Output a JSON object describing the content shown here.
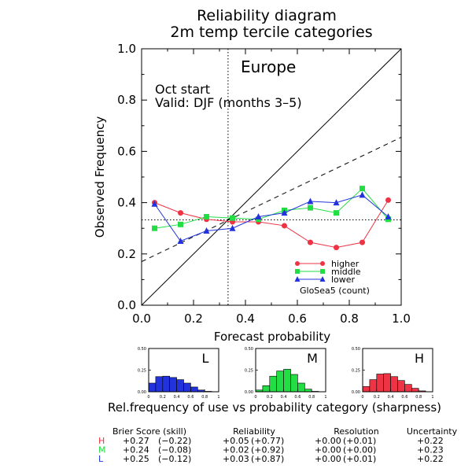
{
  "title_line1": "Reliability diagram",
  "title_line2": "2m temp tercile categories",
  "region": "Europe",
  "start_text": "Oct start",
  "valid_text": "Valid: DJF (months 3–5)",
  "model_text": "GloSea5 (count)",
  "colors": {
    "higher": "#ee3344",
    "middle": "#22dd44",
    "lower": "#2233dd"
  },
  "chart_data": {
    "type": "line",
    "xlabel": "Forecast probability",
    "ylabel": "Observed Frequency",
    "xlim": [
      0.0,
      1.0
    ],
    "ylim": [
      0.0,
      1.0
    ],
    "x_ticks": [
      "0.0",
      "0.2",
      "0.4",
      "0.6",
      "0.8",
      "1.0"
    ],
    "y_ticks": [
      "0.0",
      "0.2",
      "0.4",
      "0.6",
      "0.8",
      "1.0"
    ],
    "climatology": 0.333,
    "diagonal": [
      [
        0,
        0
      ],
      [
        1,
        1
      ]
    ],
    "no_skill_line": [
      [
        0,
        0.17
      ],
      [
        1,
        0.655
      ]
    ],
    "x": [
      0.05,
      0.15,
      0.25,
      0.35,
      0.45,
      0.55,
      0.65,
      0.75,
      0.85,
      0.95
    ],
    "series": [
      {
        "name": "higher",
        "key": "higher",
        "marker": "circle",
        "values": [
          0.4,
          0.36,
          0.335,
          0.325,
          0.325,
          0.31,
          0.245,
          0.225,
          0.245,
          0.41
        ]
      },
      {
        "name": "middle",
        "key": "middle",
        "marker": "square",
        "values": [
          0.3,
          0.315,
          0.345,
          0.34,
          0.335,
          0.37,
          0.38,
          0.36,
          0.455,
          0.335
        ]
      },
      {
        "name": "lower",
        "key": "lower",
        "marker": "triangle",
        "values": [
          0.395,
          0.25,
          0.29,
          0.3,
          0.345,
          0.36,
          0.405,
          0.4,
          0.43,
          0.345
        ]
      }
    ],
    "legend_location": "lower-right",
    "sharpness": {
      "caption": "Rel.frequency of use vs probability category (sharpness)",
      "y_ticks": [
        "0.50",
        "0.25",
        "0.00"
      ],
      "x_ticks": [
        "0",
        "0.2",
        "0.4",
        "0.6",
        "0.8",
        "1"
      ],
      "xlim": [
        0,
        1
      ],
      "ylim": [
        0,
        0.5
      ],
      "panels": [
        {
          "label": "L",
          "key": "lower",
          "values": [
            0.1,
            0.175,
            0.18,
            0.165,
            0.14,
            0.1,
            0.055,
            0.02,
            0.005,
            0.0
          ]
        },
        {
          "label": "M",
          "key": "middle",
          "values": [
            0.02,
            0.07,
            0.18,
            0.24,
            0.26,
            0.2,
            0.1,
            0.03,
            0.005,
            0.0
          ]
        },
        {
          "label": "H",
          "key": "higher",
          "values": [
            0.06,
            0.14,
            0.205,
            0.21,
            0.175,
            0.13,
            0.085,
            0.04,
            0.01,
            0.0
          ]
        }
      ]
    },
    "scores": {
      "headers": [
        "Brier Score (skill)",
        "Reliability",
        "Resolution",
        "Uncertainty"
      ],
      "rows": [
        {
          "label": "H",
          "key": "higher",
          "brier": "+0.27",
          "brier_skill": "(−0.22)",
          "reliability": "+0.05",
          "reliability_skill": "(+0.77)",
          "resolution": "+0.00",
          "resolution_skill": "(+0.01)",
          "uncertainty": "+0.22"
        },
        {
          "label": "M",
          "key": "middle",
          "brier": "+0.24",
          "brier_skill": "(−0.08)",
          "reliability": "+0.02",
          "reliability_skill": "(+0.92)",
          "resolution": "+0.00",
          "resolution_skill": "(+0.00)",
          "uncertainty": "+0.23"
        },
        {
          "label": "L",
          "key": "lower",
          "brier": "+0.25",
          "brier_skill": "(−0.12)",
          "reliability": "+0.03",
          "reliability_skill": "(+0.87)",
          "resolution": "+0.00",
          "resolution_skill": "(+0.01)",
          "uncertainty": "+0.22"
        }
      ]
    }
  }
}
